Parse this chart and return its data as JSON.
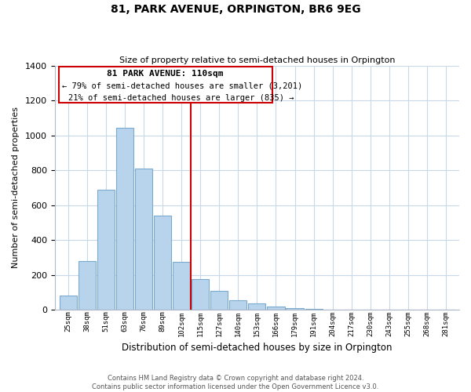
{
  "title": "81, PARK AVENUE, ORPINGTON, BR6 9EG",
  "subtitle": "Size of property relative to semi-detached houses in Orpington",
  "xlabel": "Distribution of semi-detached houses by size in Orpington",
  "ylabel": "Number of semi-detached properties",
  "bar_labels": [
    "25sqm",
    "38sqm",
    "51sqm",
    "63sqm",
    "76sqm",
    "89sqm",
    "102sqm",
    "115sqm",
    "127sqm",
    "140sqm",
    "153sqm",
    "166sqm",
    "179sqm",
    "191sqm",
    "204sqm",
    "217sqm",
    "230sqm",
    "243sqm",
    "255sqm",
    "268sqm",
    "281sqm"
  ],
  "bar_values": [
    80,
    280,
    690,
    1045,
    810,
    540,
    275,
    175,
    110,
    55,
    35,
    18,
    8,
    5,
    2,
    1,
    0,
    0,
    0,
    0,
    0
  ],
  "bar_color": "#b8d4ed",
  "bar_edge_color": "#7aabcf",
  "vline_color": "#cc0000",
  "annotation_text_line1": "81 PARK AVENUE: 110sqm",
  "annotation_text_line2": "← 79% of semi-detached houses are smaller (3,201)",
  "annotation_text_line3": "21% of semi-detached houses are larger (835) →",
  "ylim": [
    0,
    1400
  ],
  "yticks": [
    0,
    200,
    400,
    600,
    800,
    1000,
    1200,
    1400
  ],
  "footer_line1": "Contains HM Land Registry data © Crown copyright and database right 2024.",
  "footer_line2": "Contains public sector information licensed under the Open Government Licence v3.0.",
  "background_color": "#ffffff",
  "grid_color": "#c8d8e8"
}
